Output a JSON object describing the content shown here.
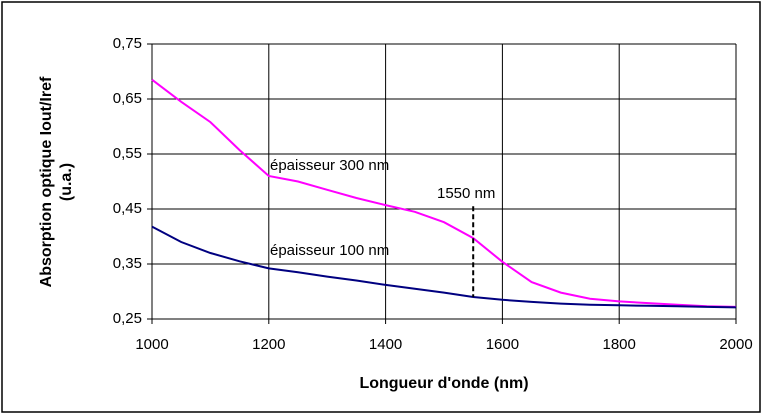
{
  "chart_data": {
    "type": "line",
    "xlabel": "Longueur d'onde (nm)",
    "ylabel": [
      "Absorption optique Iout/Iref",
      "(u.a.)"
    ],
    "x": [
      1000,
      1050,
      1100,
      1150,
      1200,
      1250,
      1300,
      1350,
      1400,
      1450,
      1500,
      1550,
      1600,
      1650,
      1700,
      1750,
      1800,
      1850,
      1900,
      1950,
      2000
    ],
    "series": [
      {
        "color": "#ff00ff",
        "values": [
          0.685,
          0.645,
          0.608,
          0.557,
          0.51,
          0.5,
          0.485,
          0.47,
          0.457,
          0.445,
          0.426,
          0.397,
          0.354,
          0.317,
          0.298,
          0.287,
          0.282,
          0.279,
          0.276,
          0.273,
          0.272
        ]
      },
      {
        "color": "#000080",
        "values": [
          0.418,
          0.39,
          0.37,
          0.355,
          0.342,
          0.335,
          0.327,
          0.32,
          0.312,
          0.305,
          0.298,
          0.29,
          0.285,
          0.281,
          0.278,
          0.276,
          0.275,
          0.274,
          0.273,
          0.272,
          0.271
        ]
      }
    ],
    "annotations": [
      "épaisseur 300 nm",
      "1550 nm",
      "épaisseur 100 nm"
    ],
    "vline": {
      "x": 1550,
      "ymin": 0.29,
      "ymax": 0.455
    },
    "xlim": [
      1000,
      2000
    ],
    "xticks": [
      1000,
      1200,
      1400,
      1600,
      1800,
      2000
    ],
    "ylim": [
      0.25,
      0.75
    ],
    "yticks": [
      {
        "value": 0.25,
        "label": "0,25"
      },
      {
        "value": 0.35,
        "label": "0,35"
      },
      {
        "value": 0.45,
        "label": "0,45"
      },
      {
        "value": 0.55,
        "label": "0,55"
      },
      {
        "value": 0.65,
        "label": "0,65"
      },
      {
        "value": 0.75,
        "label": "0,75"
      }
    ],
    "grid": true
  }
}
